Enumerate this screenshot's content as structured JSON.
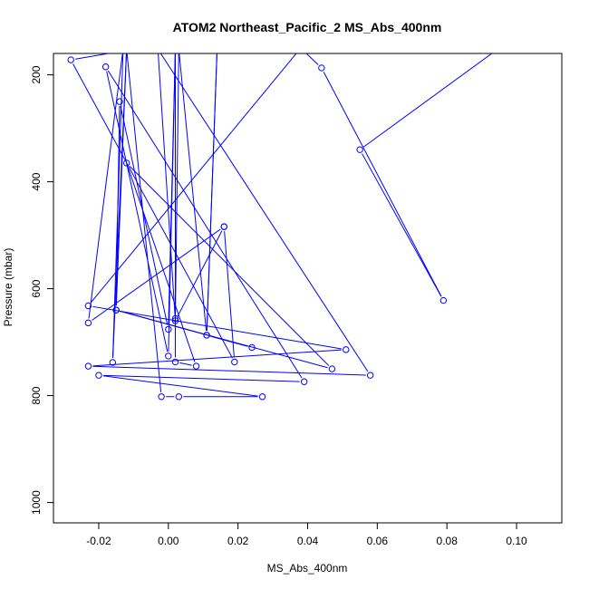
{
  "chart_data": {
    "type": "line",
    "title": "ATOM2 Northeast_Pacific_2 MS_Abs_400nm",
    "xlabel": "MS_Abs_400nm",
    "ylabel": "Pressure (mbar)",
    "xlim": [
      -0.033,
      0.113
    ],
    "ylim": [
      1038,
      160
    ],
    "y_reversed": true,
    "x_ticks": [
      -0.02,
      0.0,
      0.02,
      0.04,
      0.06,
      0.08,
      0.1
    ],
    "x_tick_labels": [
      "-0.02",
      "0.00",
      "0.02",
      "0.04",
      "0.06",
      "0.08",
      "0.10"
    ],
    "y_ticks": [
      200,
      400,
      600,
      800,
      1000
    ],
    "y_tick_labels": [
      "200",
      "400",
      "600",
      "800",
      "1000"
    ],
    "line_color": "#0000ff",
    "marker": "open-circle",
    "grid": false,
    "legend": "none",
    "series": [
      {
        "points": [
          {
            "x": 0.095,
            "y": 150
          },
          {
            "x": 0.055,
            "y": 340
          },
          {
            "x": 0.079,
            "y": 622
          },
          {
            "x": 0.044,
            "y": 187
          },
          {
            "x": 0.038,
            "y": 150
          },
          {
            "x": -0.023,
            "y": 632
          },
          {
            "x": 0.051,
            "y": 714
          },
          {
            "x": -0.023,
            "y": 745
          },
          {
            "x": 0.058,
            "y": 762
          },
          {
            "x": -0.003,
            "y": 152
          },
          {
            "x": 0.002,
            "y": 660
          },
          {
            "x": 0.016,
            "y": 484
          },
          {
            "x": -0.023,
            "y": 664
          },
          {
            "x": -0.013,
            "y": 152
          },
          {
            "x": -0.016,
            "y": 738
          },
          {
            "x": -0.012,
            "y": 152
          },
          {
            "x": -0.002,
            "y": 802
          },
          {
            "x": 0.003,
            "y": 802
          },
          {
            "x": 0.027,
            "y": 802
          },
          {
            "x": -0.02,
            "y": 762
          },
          {
            "x": 0.039,
            "y": 774
          },
          {
            "x": -0.018,
            "y": 185
          },
          {
            "x": 0.0,
            "y": 726
          },
          {
            "x": 0.002,
            "y": 152
          },
          {
            "x": 0.002,
            "y": 737
          },
          {
            "x": 0.008,
            "y": 745
          },
          {
            "x": -0.012,
            "y": 365
          },
          {
            "x": 0.047,
            "y": 750
          },
          {
            "x": -0.015,
            "y": 640
          },
          {
            "x": 0.024,
            "y": 710
          },
          {
            "x": 0.011,
            "y": 687
          },
          {
            "x": 0.014,
            "y": 152
          },
          {
            "x": 0.011,
            "y": 687
          },
          {
            "x": 0.003,
            "y": 152
          },
          {
            "x": 0.002,
            "y": 656
          },
          {
            "x": 0.002,
            "y": 152
          },
          {
            "x": 0.0,
            "y": 676
          },
          {
            "x": -0.014,
            "y": 250
          },
          {
            "x": -0.015,
            "y": 640
          },
          {
            "x": -0.012,
            "y": 152
          },
          {
            "x": -0.01,
            "y": 152
          },
          {
            "x": -0.028,
            "y": 172
          },
          {
            "x": 0.019,
            "y": 737
          },
          {
            "x": 0.016,
            "y": 484
          }
        ]
      }
    ]
  }
}
